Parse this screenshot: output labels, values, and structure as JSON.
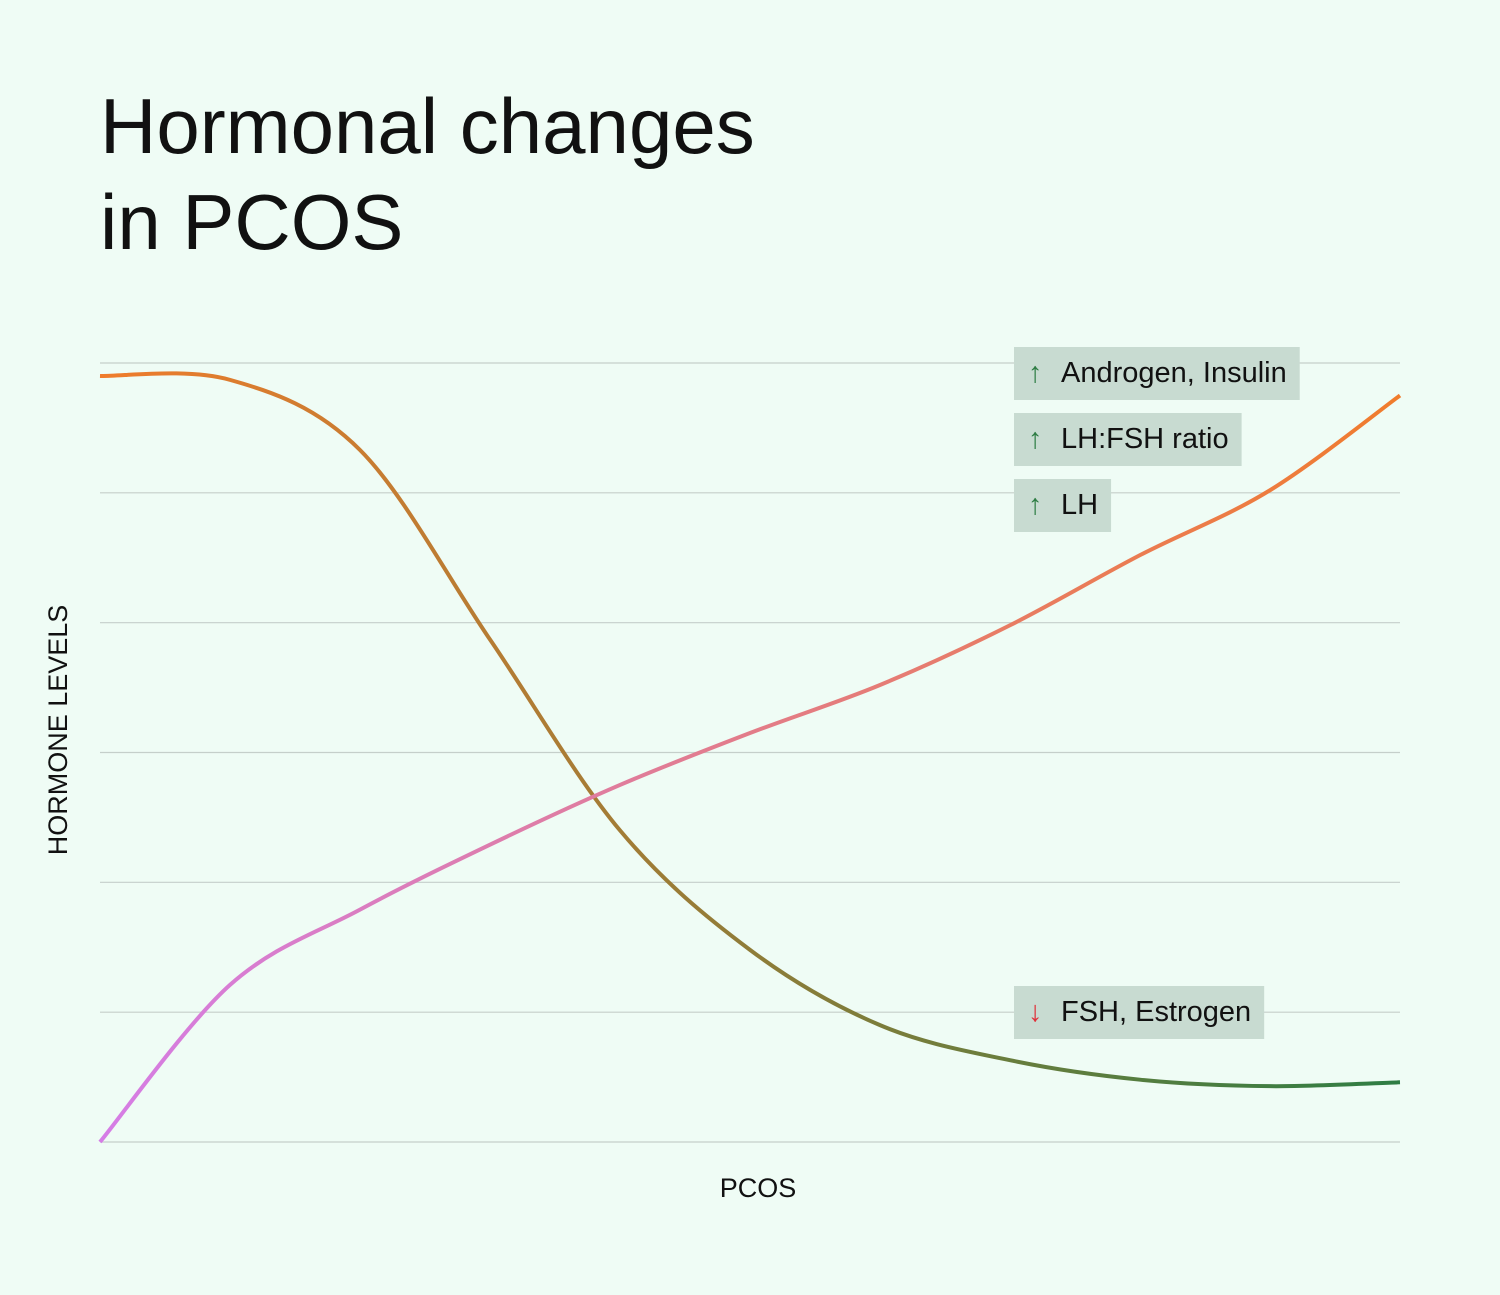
{
  "chart_data": {
    "type": "line",
    "title": "Hormonal changes in PCOS",
    "x_label": "PCOS",
    "y_label": "HORMONE LEVELS",
    "x": [
      0,
      1,
      2,
      3,
      4,
      5,
      6,
      7,
      8,
      9,
      10
    ],
    "xlim": [
      0,
      10
    ],
    "ylim": [
      0,
      6
    ],
    "yticks": [
      0,
      1,
      2,
      3,
      4,
      5,
      6
    ],
    "grid": true,
    "series": [
      {
        "gradient": [
          "#f07c2c",
          "#2e7d44"
        ],
        "values": [
          5.9,
          5.87,
          5.33,
          3.87,
          2.4,
          1.48,
          0.9,
          0.63,
          0.48,
          0.43,
          0.46
        ]
      },
      {
        "gradient": [
          "#d57de6",
          "#f07c2c"
        ],
        "values": [
          0,
          1.21,
          1.79,
          2.29,
          2.75,
          3.15,
          3.52,
          3.98,
          4.52,
          5.02,
          5.75
        ]
      }
    ],
    "annotations": [
      {
        "arrow": "↑",
        "text": "Androgen, Insulin",
        "arrow_color": "#2e7d44"
      },
      {
        "arrow": "↑",
        "text": "LH:FSH ratio",
        "arrow_color": "#2e7d44"
      },
      {
        "arrow": "↑",
        "text": "LH",
        "arrow_color": "#2e7d44"
      },
      {
        "arrow": "↓",
        "text": "FSH, Estrogen",
        "arrow_color": "#e0303a"
      }
    ]
  }
}
